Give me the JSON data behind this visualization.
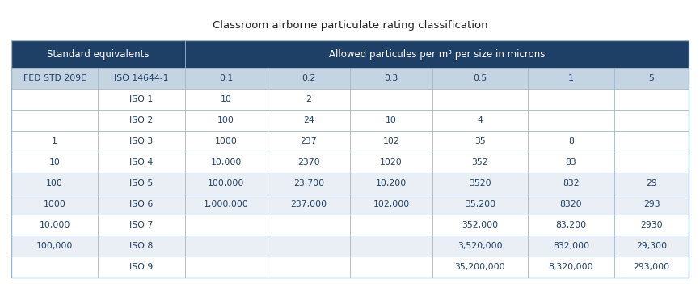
{
  "title": "Classroom airborne particulate rating classification",
  "header1_text": "Standard equivalents",
  "header2_text": "Allowed particules per m³ per size in microns",
  "col_header_row": [
    "FED STD 209E",
    "ISO 14644-1",
    "0.1",
    "0.2",
    "0.3",
    "0.5",
    "1",
    "5"
  ],
  "rows": [
    [
      "",
      "ISO 1",
      "10",
      "2",
      "",
      "",
      "",
      ""
    ],
    [
      "",
      "ISO 2",
      "100",
      "24",
      "10",
      "4",
      "",
      ""
    ],
    [
      "1",
      "ISO 3",
      "1000",
      "237",
      "102",
      "35",
      "8",
      ""
    ],
    [
      "10",
      "ISO 4",
      "10,000",
      "2370",
      "1020",
      "352",
      "83",
      ""
    ],
    [
      "100",
      "ISO 5",
      "100,000",
      "23,700",
      "10,200",
      "3520",
      "832",
      "29"
    ],
    [
      "1000",
      "ISO 6",
      "1,000,000",
      "237,000",
      "102,000",
      "35,200",
      "8320",
      "293"
    ],
    [
      "10,000",
      "ISO 7",
      "",
      "",
      "",
      "352,000",
      "83,200",
      "2930"
    ],
    [
      "100,000",
      "ISO 8",
      "",
      "",
      "",
      "3,520,000",
      "832,000",
      "29,300"
    ],
    [
      "",
      "ISO 9",
      "",
      "",
      "",
      "35,200,000",
      "8,320,000",
      "293,000"
    ]
  ],
  "header_bg_dark": "#1e3f66",
  "header_bg_light": "#c5d4e3",
  "row_bg_white": "#ffffff",
  "row_bg_light": "#eaeff5",
  "border_color": "#9db3c8",
  "header_text_color": "#ffffff",
  "col_header_text_color": "#1e3f66",
  "cell_text_color": "#1e3f66",
  "title_color": "#222222",
  "col_widths_raw": [
    1.05,
    1.05,
    1.0,
    1.0,
    1.0,
    1.15,
    1.05,
    0.9
  ],
  "title_fontsize": 9.5,
  "header_fontsize": 8.5,
  "cell_fontsize": 7.8
}
